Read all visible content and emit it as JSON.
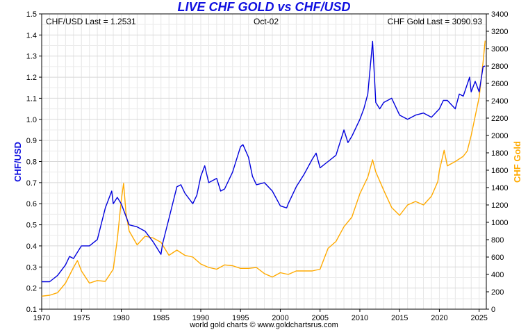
{
  "chart_data": {
    "type": "line",
    "title": "LIVE CHF GOLD vs CHF/USD",
    "header_left": "CHF/USD Last = 1.2531",
    "header_center": "Oct-02",
    "header_right": "CHF Gold Last = 3090.93",
    "credit": "world gold charts © www.goldchartsrus.com",
    "xlabel": "",
    "ylabel_left": "CHF/USD",
    "ylabel_right": "CHF Gold",
    "xlim": [
      1970,
      2025.9
    ],
    "ylim_left": [
      0.1,
      1.5
    ],
    "ylim_right": [
      0,
      3400
    ],
    "x_ticks": [
      "1970",
      "1975",
      "1980",
      "1985",
      "1990",
      "1995",
      "2000",
      "2005",
      "2010",
      "2015",
      "2020",
      "2025"
    ],
    "y_left_ticks": [
      "0.1",
      "0.2",
      "0.3",
      "0.4",
      "0.5",
      "0.6",
      "0.7",
      "0.8",
      "0.9",
      "1.0",
      "1.1",
      "1.2",
      "1.3",
      "1.4",
      "1.5"
    ],
    "y_right_ticks": [
      "0",
      "200",
      "400",
      "600",
      "800",
      "1000",
      "1200",
      "1400",
      "1600",
      "1800",
      "2000",
      "2200",
      "2400",
      "2600",
      "2800",
      "3000",
      "3200",
      "3400"
    ],
    "grid": true,
    "series": [
      {
        "name": "CHF/USD",
        "axis": "left",
        "color": "#0000dd",
        "x": [
          1970,
          1971,
          1971.5,
          1972,
          1973,
          1973.5,
          1974,
          1975,
          1976,
          1977,
          1978,
          1978.8,
          1979,
          1979.5,
          1980,
          1980.5,
          1981,
          1982,
          1983,
          1984,
          1985,
          1985.2,
          1986,
          1987,
          1987.5,
          1988,
          1989,
          1989.5,
          1990,
          1990.5,
          1991,
          1992,
          1992.5,
          1993,
          1994,
          1995,
          1995.3,
          1996,
          1996.5,
          1997,
          1998,
          1999,
          2000,
          2000.8,
          2001,
          2002,
          2003,
          2004,
          2004.5,
          2005,
          2006,
          2007,
          2008,
          2008.5,
          2009,
          2010,
          2010.5,
          2011,
          2011.6,
          2012,
          2012.5,
          2013,
          2014,
          2015,
          2016,
          2017,
          2018,
          2019,
          2020,
          2020.5,
          2021,
          2022,
          2022.5,
          2023,
          2023.8,
          2024,
          2024.5,
          2025,
          2025.5,
          2025.75
        ],
        "values": [
          0.23,
          0.23,
          0.245,
          0.26,
          0.31,
          0.35,
          0.34,
          0.4,
          0.4,
          0.43,
          0.58,
          0.66,
          0.6,
          0.63,
          0.6,
          0.55,
          0.5,
          0.49,
          0.47,
          0.42,
          0.36,
          0.41,
          0.53,
          0.68,
          0.69,
          0.65,
          0.6,
          0.64,
          0.73,
          0.78,
          0.7,
          0.72,
          0.66,
          0.67,
          0.75,
          0.87,
          0.88,
          0.82,
          0.73,
          0.69,
          0.7,
          0.66,
          0.59,
          0.58,
          0.6,
          0.68,
          0.74,
          0.81,
          0.84,
          0.77,
          0.8,
          0.83,
          0.95,
          0.89,
          0.92,
          1.0,
          1.05,
          1.12,
          1.37,
          1.08,
          1.05,
          1.08,
          1.1,
          1.02,
          1.0,
          1.02,
          1.03,
          1.01,
          1.05,
          1.09,
          1.09,
          1.05,
          1.12,
          1.11,
          1.2,
          1.13,
          1.18,
          1.13,
          1.25,
          1.2531
        ]
      },
      {
        "name": "CHF Gold",
        "axis": "right",
        "color": "#ffaa00",
        "x": [
          1970,
          1971,
          1972,
          1973,
          1974,
          1974.5,
          1975,
          1976,
          1977,
          1978,
          1979,
          1979.5,
          1980,
          1980.3,
          1980.6,
          1981,
          1982,
          1983,
          1984,
          1985,
          1986,
          1987,
          1988,
          1989,
          1990,
          1991,
          1992,
          1993,
          1994,
          1995,
          1996,
          1997,
          1998,
          1999,
          2000,
          2001,
          2002,
          2003,
          2004,
          2005,
          2006,
          2007,
          2008,
          2009,
          2010,
          2011,
          2011.6,
          2012,
          2013,
          2014,
          2015,
          2016,
          2017,
          2018,
          2019,
          2019.8,
          2020,
          2020.6,
          2021,
          2022,
          2023,
          2023.5,
          2024,
          2025,
          2025.5,
          2025.75
        ],
        "values": [
          150,
          160,
          190,
          300,
          480,
          560,
          440,
          300,
          330,
          320,
          460,
          800,
          1250,
          1450,
          1100,
          900,
          740,
          840,
          820,
          770,
          620,
          680,
          620,
          600,
          520,
          480,
          460,
          510,
          500,
          470,
          470,
          480,
          410,
          370,
          420,
          400,
          440,
          440,
          440,
          460,
          700,
          780,
          950,
          1060,
          1330,
          1520,
          1720,
          1580,
          1370,
          1170,
          1080,
          1200,
          1240,
          1200,
          1300,
          1470,
          1600,
          1830,
          1650,
          1700,
          1760,
          1820,
          2000,
          2440,
          2850,
          3090.93
        ]
      }
    ]
  }
}
